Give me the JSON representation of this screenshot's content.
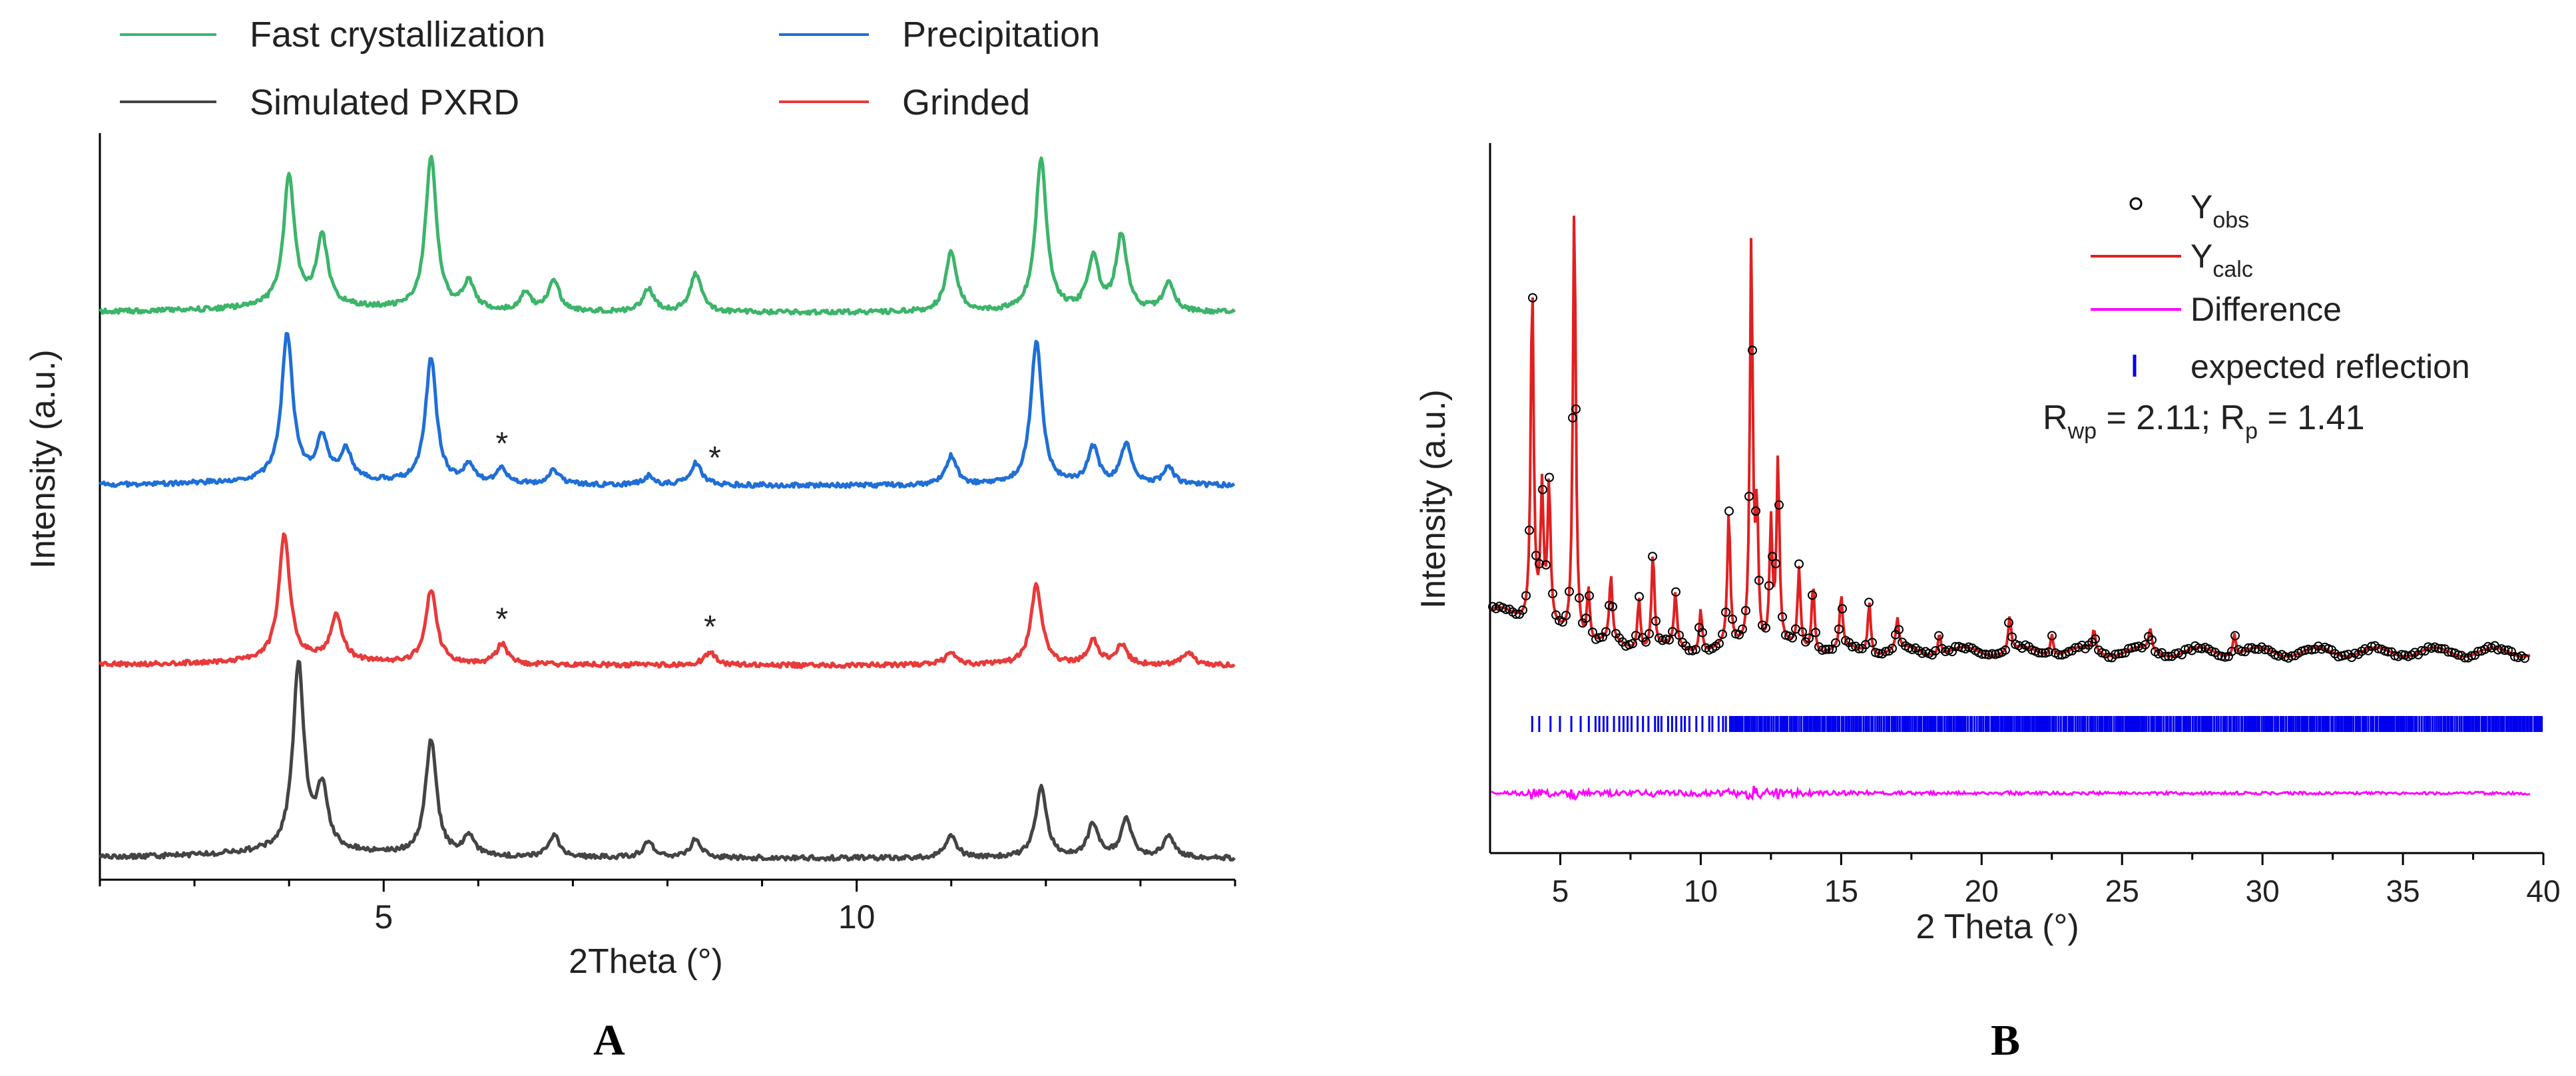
{
  "chart_data": [
    {
      "type": "line",
      "panel_label": "A",
      "xlabel": "2Theta (°)",
      "ylabel": "Intensity (a.u.)",
      "xlim": [
        2,
        14
      ],
      "x_ticks": [
        5,
        10
      ],
      "y_ticks": "none",
      "grid": false,
      "legend_position": "top",
      "series": [
        {
          "name": "Fast crystallization",
          "color": "#3cb46a",
          "peaks": [
            [
              4.0,
              0.85
            ],
            [
              4.35,
              0.45
            ],
            [
              5.5,
              1.0
            ],
            [
              5.9,
              0.18
            ],
            [
              6.5,
              0.12
            ],
            [
              6.8,
              0.2
            ],
            [
              7.8,
              0.15
            ],
            [
              8.3,
              0.25
            ],
            [
              11.0,
              0.4
            ],
            [
              11.95,
              1.0
            ],
            [
              12.5,
              0.35
            ],
            [
              12.8,
              0.5
            ],
            [
              13.3,
              0.2
            ]
          ]
        },
        {
          "name": "Precipitation",
          "color": "#1f6fd6",
          "annotations": [
            "*",
            "*"
          ],
          "annotation_x": [
            6.25,
            8.5
          ],
          "peaks": [
            [
              3.98,
              1.0
            ],
            [
              4.35,
              0.28
            ],
            [
              4.6,
              0.2
            ],
            [
              5.5,
              0.85
            ],
            [
              5.9,
              0.12
            ],
            [
              6.25,
              0.1
            ],
            [
              6.8,
              0.1
            ],
            [
              7.8,
              0.06
            ],
            [
              8.3,
              0.15
            ],
            [
              11.0,
              0.2
            ],
            [
              11.9,
              0.98
            ],
            [
              12.5,
              0.25
            ],
            [
              12.85,
              0.28
            ],
            [
              13.3,
              0.12
            ]
          ]
        },
        {
          "name": "Grinded",
          "color": "#e83a3a",
          "annotations": [
            "*",
            "*"
          ],
          "annotation_x": [
            6.25,
            8.45
          ],
          "peaks": [
            [
              3.95,
              0.95
            ],
            [
              4.5,
              0.35
            ],
            [
              5.5,
              0.55
            ],
            [
              6.25,
              0.15
            ],
            [
              8.45,
              0.1
            ],
            [
              11.0,
              0.1
            ],
            [
              11.9,
              0.6
            ],
            [
              12.5,
              0.18
            ],
            [
              12.8,
              0.15
            ],
            [
              13.5,
              0.1
            ]
          ]
        },
        {
          "name": "Simulated PXRD",
          "color": "#444444",
          "peaks": [
            [
              4.1,
              1.0
            ],
            [
              4.35,
              0.32
            ],
            [
              5.5,
              0.62
            ],
            [
              5.9,
              0.1
            ],
            [
              6.8,
              0.12
            ],
            [
              7.8,
              0.08
            ],
            [
              8.3,
              0.1
            ],
            [
              11.0,
              0.12
            ],
            [
              11.95,
              0.38
            ],
            [
              12.5,
              0.18
            ],
            [
              12.85,
              0.2
            ],
            [
              13.3,
              0.12
            ]
          ]
        }
      ]
    },
    {
      "type": "line",
      "panel_label": "B",
      "xlabel": "2 Theta (°)",
      "ylabel": "Intensity (a.u.)",
      "xlim": [
        2.5,
        40
      ],
      "x_ticks": [
        5,
        10,
        15,
        20,
        25,
        30,
        35,
        40
      ],
      "x_tick_labels": [
        "5",
        "10",
        "15",
        "20",
        "25",
        "30",
        "35",
        "40"
      ],
      "y_ticks": "none",
      "grid": false,
      "legend_position": "top-right",
      "legend": [
        {
          "label": "Y",
          "sub": "obs",
          "color": "#000000"
        },
        {
          "label": "Y",
          "sub": "calc",
          "color": "#e02020"
        },
        {
          "label": "Difference",
          "sub": "",
          "color": "#ff00ff"
        },
        {
          "label": "expected reflection",
          "sub": "",
          "color": "#0000ee"
        }
      ],
      "annotation": {
        "r": "R",
        "wp_sub": "wp",
        "wp_text": " = 2.11; R",
        "p_sub": "p",
        "p_text": " = 1.41"
      },
      "peaks": [
        [
          4.0,
          0.78
        ],
        [
          4.35,
          0.3
        ],
        [
          4.6,
          0.32
        ],
        [
          5.5,
          1.0
        ],
        [
          6.0,
          0.12
        ],
        [
          6.8,
          0.15
        ],
        [
          7.8,
          0.12
        ],
        [
          8.3,
          0.22
        ],
        [
          9.1,
          0.12
        ],
        [
          10.0,
          0.1
        ],
        [
          11.0,
          0.3
        ],
        [
          11.8,
          0.92
        ],
        [
          12.0,
          0.3
        ],
        [
          12.5,
          0.28
        ],
        [
          12.75,
          0.42
        ],
        [
          13.5,
          0.18
        ],
        [
          14.0,
          0.16
        ],
        [
          15.0,
          0.12
        ],
        [
          16.0,
          0.12
        ],
        [
          17.0,
          0.07
        ],
        [
          18.5,
          0.05
        ],
        [
          21.0,
          0.08
        ],
        [
          22.5,
          0.05
        ],
        [
          24.0,
          0.05
        ],
        [
          26.0,
          0.05
        ],
        [
          29.0,
          0.05
        ]
      ],
      "reflections_range": [
        4.0,
        40.0
      ],
      "difference_series": "residual"
    }
  ]
}
